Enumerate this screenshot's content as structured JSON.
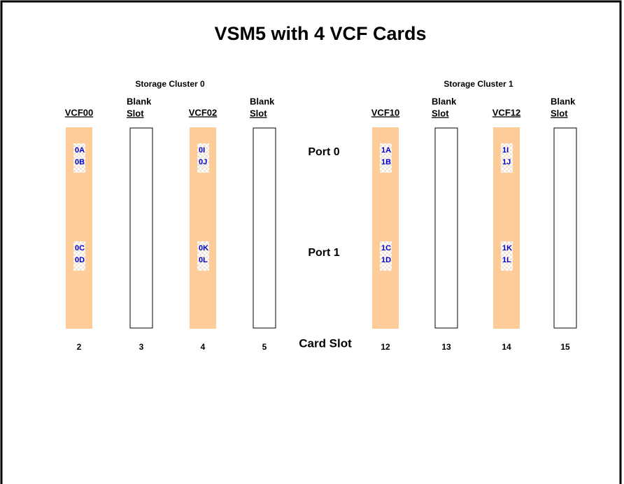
{
  "title": "VSM5 with 4 VCF Cards",
  "clusters": [
    "Storage Cluster 0",
    "Storage Cluster 1"
  ],
  "ports": [
    "Port 0",
    "Port 1"
  ],
  "card_slot": "Card Slot",
  "slots": [
    {
      "header": [
        "VCF00"
      ],
      "number": "2",
      "ports": [
        [
          "0A",
          "0B"
        ],
        [
          "0C",
          "0D"
        ]
      ]
    },
    {
      "header": [
        "Blank",
        "Slot"
      ],
      "number": "3"
    },
    {
      "header": [
        "VCF02"
      ],
      "number": "4",
      "ports": [
        [
          "0I",
          "0J"
        ],
        [
          "0K",
          "0L"
        ]
      ]
    },
    {
      "header": [
        "Blank",
        "Slot"
      ],
      "number": "5"
    },
    {
      "header": [
        "VCF10"
      ],
      "number": "12",
      "ports": [
        [
          "1A",
          "1B"
        ],
        [
          "1C",
          "1D"
        ]
      ]
    },
    {
      "header": [
        "Blank",
        "Slot"
      ],
      "number": "13"
    },
    {
      "header": [
        "VCF12"
      ],
      "number": "14",
      "ports": [
        [
          "1I",
          "1J"
        ],
        [
          "1K",
          "1L"
        ]
      ]
    },
    {
      "header": [
        "Blank",
        "Slot"
      ],
      "number": "15"
    }
  ]
}
